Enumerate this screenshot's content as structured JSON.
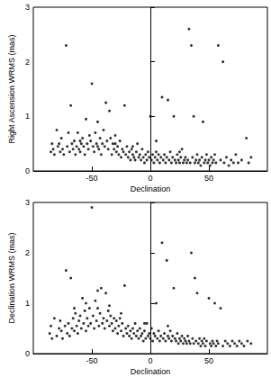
{
  "chart_data": [
    {
      "type": "scatter",
      "xlabel": "Declination",
      "ylabel": "Right Ascension WRMS (mas)",
      "xlim": [
        -100,
        100
      ],
      "xticks": [
        -50,
        0,
        50
      ],
      "ylim": [
        0,
        3
      ],
      "yticks": [
        0,
        1,
        2,
        3
      ],
      "grid": false,
      "marker": "circle",
      "color": "#000000",
      "x": [
        -85,
        -83,
        -82,
        -80,
        -79,
        -78,
        -77,
        -75,
        -74,
        -72,
        -71,
        -70,
        -69,
        -68,
        -67,
        -66,
        -65,
        -64,
        -63,
        -62,
        -61,
        -60,
        -59,
        -58,
        -57,
        -56,
        -55,
        -54,
        -53,
        -52,
        -51,
        -50,
        -49,
        -48,
        -47,
        -46,
        -45,
        -44,
        -43,
        -42,
        -41,
        -40,
        -39,
        -38,
        -37,
        -36,
        -35,
        -34,
        -33,
        -32,
        -31,
        -30,
        -29,
        -28,
        -27,
        -26,
        -25,
        -24,
        -23,
        -22,
        -21,
        -20,
        -19,
        -18,
        -17,
        -16,
        -15,
        -14,
        -13,
        -12,
        -11,
        -10,
        -9,
        -8,
        -7,
        -6,
        -5,
        -4,
        -3,
        -2,
        -1,
        0,
        1,
        2,
        3,
        4,
        5,
        6,
        7,
        8,
        9,
        10,
        11,
        12,
        13,
        14,
        15,
        16,
        17,
        18,
        19,
        20,
        21,
        22,
        23,
        24,
        25,
        26,
        27,
        28,
        29,
        30,
        31,
        32,
        33,
        34,
        35,
        36,
        37,
        38,
        39,
        40,
        41,
        42,
        43,
        44,
        45,
        46,
        47,
        48,
        49,
        50,
        51,
        52,
        53,
        54,
        55,
        56,
        58,
        60,
        62,
        63,
        65,
        67,
        69,
        71,
        73,
        75,
        78,
        82,
        84,
        86,
        -84,
        -76,
        -60,
        -45,
        -30,
        -15,
        5,
        25
      ],
      "values": [
        0.35,
        0.4,
        0.3,
        0.75,
        0.45,
        0.5,
        0.35,
        0.4,
        0.3,
        2.3,
        0.45,
        0.7,
        0.35,
        1.2,
        0.5,
        0.4,
        0.55,
        0.3,
        0.45,
        0.7,
        0.4,
        0.35,
        0.5,
        0.6,
        0.45,
        0.3,
        0.95,
        0.5,
        0.4,
        0.65,
        0.55,
        1.6,
        0.45,
        0.35,
        0.7,
        0.5,
        0.9,
        0.4,
        0.6,
        0.3,
        0.5,
        0.75,
        0.45,
        1.25,
        0.55,
        0.4,
        1.1,
        0.6,
        0.3,
        0.5,
        0.4,
        0.65,
        0.35,
        0.45,
        0.3,
        0.55,
        0.25,
        0.4,
        0.35,
        1.2,
        0.3,
        0.45,
        0.25,
        0.35,
        0.2,
        0.4,
        0.3,
        0.25,
        0.2,
        0.35,
        0.5,
        0.25,
        0.3,
        0.2,
        0.4,
        0.25,
        0.15,
        0.3,
        0.2,
        0.35,
        0.25,
        1.0,
        0.2,
        0.3,
        0.15,
        0.25,
        0.55,
        0.2,
        0.3,
        0.15,
        0.25,
        1.35,
        0.2,
        0.3,
        0.15,
        0.25,
        1.3,
        0.2,
        0.35,
        0.15,
        0.25,
        1.0,
        0.2,
        0.15,
        0.3,
        0.2,
        0.15,
        0.25,
        0.4,
        0.15,
        0.2,
        0.25,
        0.15,
        0.2,
        2.6,
        0.15,
        2.3,
        0.25,
        1.0,
        0.15,
        0.2,
        0.3,
        0.15,
        0.2,
        0.1,
        0.25,
        0.9,
        0.15,
        0.2,
        0.3,
        0.15,
        0.2,
        0.1,
        0.25,
        0.15,
        0.2,
        0.3,
        0.15,
        2.3,
        0.2,
        2.0,
        0.15,
        0.25,
        0.1,
        0.2,
        0.15,
        0.3,
        0.15,
        0.2,
        0.6,
        0.15,
        0.25,
        0.5,
        0.6,
        0.55,
        0.45,
        0.5,
        0.45,
        0.35,
        0.35
      ]
    },
    {
      "type": "scatter",
      "xlabel": "Declination",
      "ylabel": "Declination WRMS (mas)",
      "xlim": [
        -100,
        100
      ],
      "xticks": [
        -50,
        0,
        50
      ],
      "ylim": [
        0,
        3
      ],
      "yticks": [
        0,
        1,
        2,
        3
      ],
      "grid": false,
      "marker": "circle",
      "color": "#000000",
      "x": [
        -86,
        -84,
        -82,
        -80,
        -78,
        -76,
        -75,
        -73,
        -72,
        -71,
        -70,
        -69,
        -68,
        -67,
        -66,
        -65,
        -64,
        -63,
        -62,
        -61,
        -60,
        -59,
        -58,
        -57,
        -56,
        -55,
        -54,
        -53,
        -52,
        -51,
        -50,
        -49,
        -48,
        -47,
        -46,
        -45,
        -44,
        -43,
        -42,
        -41,
        -40,
        -39,
        -38,
        -37,
        -36,
        -35,
        -34,
        -33,
        -32,
        -31,
        -30,
        -29,
        -28,
        -27,
        -26,
        -25,
        -24,
        -23,
        -22,
        -21,
        -20,
        -19,
        -18,
        -17,
        -16,
        -15,
        -14,
        -13,
        -12,
        -11,
        -10,
        -9,
        -8,
        -7,
        -6,
        -5,
        -4,
        -3,
        -2,
        -1,
        0,
        1,
        2,
        3,
        4,
        5,
        6,
        7,
        8,
        9,
        10,
        11,
        12,
        13,
        14,
        15,
        16,
        17,
        18,
        19,
        20,
        21,
        22,
        23,
        24,
        25,
        26,
        27,
        28,
        29,
        30,
        31,
        32,
        33,
        34,
        35,
        36,
        37,
        38,
        39,
        40,
        41,
        42,
        43,
        44,
        45,
        46,
        47,
        48,
        50,
        51,
        52,
        53,
        54,
        55,
        56,
        57,
        58,
        60,
        62,
        64,
        66,
        68,
        70,
        72,
        74,
        76,
        78,
        80,
        83,
        86,
        -85,
        -77,
        -65,
        -55,
        -45,
        -35,
        -25,
        -5,
        15
      ],
      "values": [
        0.4,
        0.3,
        0.7,
        0.35,
        0.5,
        0.45,
        0.3,
        0.55,
        1.65,
        0.4,
        0.6,
        0.35,
        1.5,
        0.5,
        0.7,
        0.45,
        0.8,
        0.55,
        0.4,
        0.65,
        0.75,
        0.5,
        1.1,
        0.6,
        0.85,
        0.45,
        0.7,
        0.55,
        0.9,
        0.6,
        2.9,
        0.75,
        0.5,
        1.05,
        0.65,
        1.25,
        0.55,
        0.8,
        1.3,
        0.6,
        0.7,
        0.5,
        1.2,
        0.65,
        0.85,
        0.55,
        0.75,
        0.6,
        0.45,
        0.7,
        0.5,
        0.65,
        0.4,
        0.55,
        0.7,
        0.45,
        0.6,
        0.35,
        1.35,
        0.5,
        0.4,
        0.55,
        0.35,
        0.45,
        0.3,
        0.5,
        0.4,
        0.6,
        0.35,
        0.45,
        0.3,
        0.5,
        0.35,
        0.4,
        0.25,
        0.45,
        0.3,
        0.6,
        0.35,
        0.4,
        0.3,
        0.5,
        0.25,
        0.4,
        0.35,
        1.0,
        0.3,
        0.45,
        0.25,
        0.35,
        2.2,
        0.3,
        0.4,
        0.25,
        1.85,
        0.35,
        0.3,
        0.45,
        0.25,
        0.35,
        1.3,
        0.3,
        0.25,
        0.4,
        0.2,
        0.3,
        0.25,
        0.35,
        0.2,
        0.3,
        0.25,
        0.2,
        0.35,
        0.25,
        0.2,
        2.0,
        0.3,
        0.2,
        1.5,
        0.25,
        1.2,
        0.2,
        0.3,
        0.15,
        0.25,
        0.2,
        0.3,
        0.15,
        0.25,
        1.1,
        0.2,
        0.15,
        0.25,
        0.2,
        1.0,
        0.15,
        0.25,
        0.2,
        0.9,
        0.15,
        0.25,
        0.2,
        0.15,
        0.25,
        0.2,
        0.15,
        0.25,
        0.2,
        0.15,
        0.25,
        0.2,
        0.55,
        0.65,
        0.9,
        1.0,
        0.9,
        0.95,
        0.8,
        0.6,
        0.55
      ]
    }
  ]
}
